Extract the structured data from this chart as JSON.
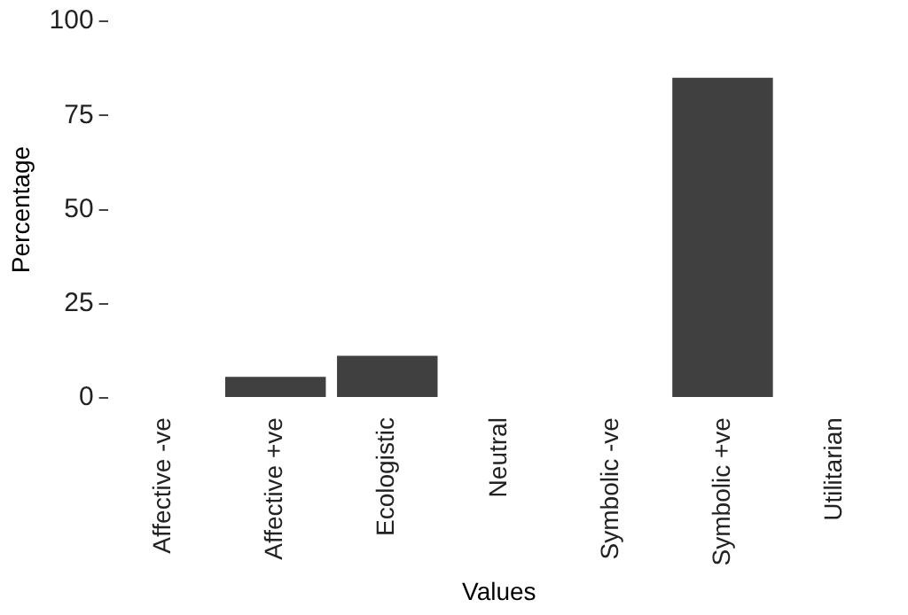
{
  "chart_data": {
    "type": "bar",
    "xlabel": "Values",
    "ylabel": "Percentage",
    "categories": [
      "Affective -ve",
      "Affective +ve",
      "Ecologistic",
      "Neutral",
      "Symbolic -ve",
      "Symbolic +ve",
      "Utilitarian"
    ],
    "values": [
      0,
      5.6,
      11.2,
      0,
      0,
      85,
      0
    ],
    "color": "#404040",
    "ylim": [
      0,
      100
    ],
    "yticks": [
      0,
      25,
      50,
      75,
      100
    ],
    "grid": false,
    "legend": false
  }
}
